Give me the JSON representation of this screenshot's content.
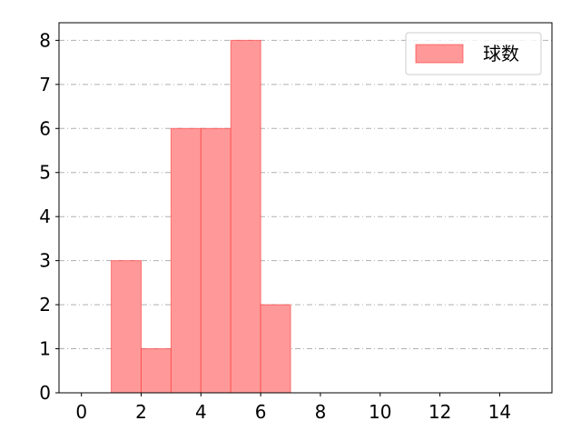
{
  "chart_data": {
    "type": "bar",
    "subtype": "histogram",
    "bins": [
      [
        1,
        2
      ],
      [
        2,
        3
      ],
      [
        3,
        4
      ],
      [
        4,
        5
      ],
      [
        5,
        6
      ],
      [
        6,
        7
      ]
    ],
    "values": [
      3,
      1,
      6,
      6,
      8,
      2
    ],
    "series": [
      {
        "name": "球数",
        "values": [
          3,
          1,
          6,
          6,
          8,
          2
        ]
      }
    ],
    "title": "",
    "xlabel": "",
    "ylabel": "",
    "xlim": [
      -0.75,
      15.75
    ],
    "ylim": [
      0,
      8.4
    ],
    "xticks": [
      0,
      2,
      4,
      6,
      8,
      10,
      12,
      14
    ],
    "yticks": [
      0,
      1,
      2,
      3,
      4,
      5,
      6,
      7,
      8
    ],
    "grid": "y-axis dash-dot",
    "legend": "top-right",
    "colors": {
      "bar_fill": "#ff9999",
      "bar_edge": "#ff3333",
      "grid": "#b0b0b0"
    }
  }
}
